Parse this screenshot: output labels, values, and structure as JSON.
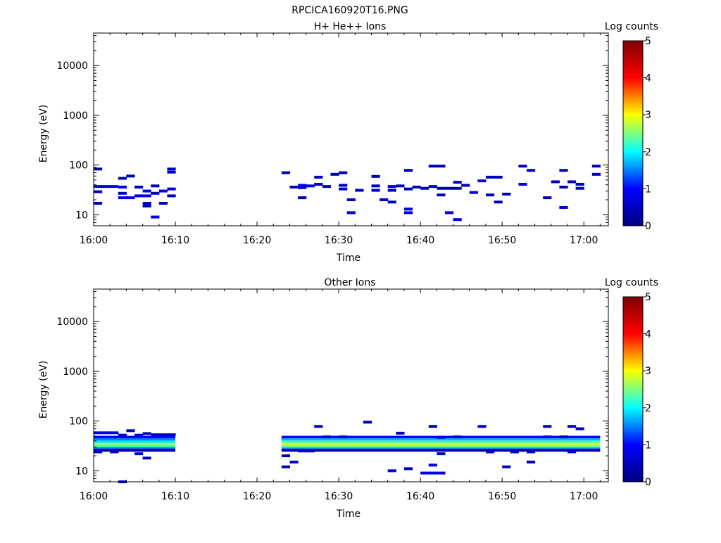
{
  "figure": {
    "title": "RPCICA160920T16.PNG"
  },
  "colorbar": {
    "stops": [
      "#00007f",
      "#0000ff",
      "#00ffff",
      "#ffff00",
      "#ff0000",
      "#7f0000"
    ]
  },
  "chart_data": [
    {
      "type": "heatmap",
      "title": "H+ He++ Ions",
      "xlabel": "Time",
      "ylabel": "Energy (eV)",
      "x_scale": "time",
      "y_scale": "log",
      "xlim": [
        "16:00",
        "17:03"
      ],
      "ylim": [
        6,
        45000
      ],
      "x_ticks": [
        "16:00",
        "16:10",
        "16:20",
        "16:30",
        "16:40",
        "16:50",
        "17:00"
      ],
      "y_ticks": [
        "10",
        "100",
        "1000",
        "10000"
      ],
      "colorbar": {
        "label": "Log counts",
        "range": [
          0,
          5
        ],
        "ticks": [
          "0",
          "1",
          "2",
          "3",
          "4",
          "5"
        ]
      },
      "cells": [
        {
          "t": "16:00",
          "e": 83,
          "c": 0.5
        },
        {
          "t": "16:00",
          "e": 37,
          "c": 0.8
        },
        {
          "t": "16:00",
          "e": 29,
          "c": 0.5
        },
        {
          "t": "16:00",
          "e": 17,
          "c": 0.5
        },
        {
          "t": "16:01",
          "e": 37,
          "c": 0.8
        },
        {
          "t": "16:02",
          "e": 37,
          "c": 0.8
        },
        {
          "t": "16:03",
          "e": 36,
          "c": 0.9
        },
        {
          "t": "16:03",
          "e": 54,
          "c": 0.5
        },
        {
          "t": "16:03",
          "e": 27,
          "c": 0.5
        },
        {
          "t": "16:03",
          "e": 22,
          "c": 0.9
        },
        {
          "t": "16:04",
          "e": 22,
          "c": 0.8
        },
        {
          "t": "16:04",
          "e": 60,
          "c": 0.5
        },
        {
          "t": "16:05",
          "e": 24,
          "c": 0.6
        },
        {
          "t": "16:05",
          "e": 36,
          "c": 0.5
        },
        {
          "t": "16:06",
          "e": 24,
          "c": 0.6
        },
        {
          "t": "16:06",
          "e": 30,
          "c": 0.8
        },
        {
          "t": "16:06",
          "e": 17,
          "c": 0.5
        },
        {
          "t": "16:06",
          "e": 15,
          "c": 0.5
        },
        {
          "t": "16:07",
          "e": 38,
          "c": 0.5
        },
        {
          "t": "16:07",
          "e": 27,
          "c": 0.5
        },
        {
          "t": "16:07",
          "e": 9,
          "c": 0.8
        },
        {
          "t": "16:08",
          "e": 30,
          "c": 0.8
        },
        {
          "t": "16:08",
          "e": 17,
          "c": 0.5
        },
        {
          "t": "16:09",
          "e": 83,
          "c": 0.6
        },
        {
          "t": "16:09",
          "e": 72,
          "c": 0.5
        },
        {
          "t": "16:09",
          "e": 33,
          "c": 0.8
        },
        {
          "t": "16:09",
          "e": 24,
          "c": 0.5
        },
        {
          "t": "16:23",
          "e": 70,
          "c": 0.5
        },
        {
          "t": "16:24",
          "e": 36,
          "c": 0.5
        },
        {
          "t": "16:25",
          "e": 39,
          "c": 0.9
        },
        {
          "t": "16:25",
          "e": 35,
          "c": 0.9
        },
        {
          "t": "16:25",
          "e": 22,
          "c": 0.5
        },
        {
          "t": "16:26",
          "e": 38,
          "c": 0.8
        },
        {
          "t": "16:27",
          "e": 57,
          "c": 0.5
        },
        {
          "t": "16:27",
          "e": 41,
          "c": 0.5
        },
        {
          "t": "16:28",
          "e": 37,
          "c": 0.5
        },
        {
          "t": "16:29",
          "e": 65,
          "c": 0.5
        },
        {
          "t": "16:30",
          "e": 70,
          "c": 0.5
        },
        {
          "t": "16:30",
          "e": 39,
          "c": 0.5
        },
        {
          "t": "16:30",
          "e": 33,
          "c": 0.5
        },
        {
          "t": "16:31",
          "e": 20,
          "c": 0.5
        },
        {
          "t": "16:31",
          "e": 11,
          "c": 0.8
        },
        {
          "t": "16:32",
          "e": 31,
          "c": 0.5
        },
        {
          "t": "16:34",
          "e": 59,
          "c": 0.5
        },
        {
          "t": "16:34",
          "e": 38,
          "c": 0.5
        },
        {
          "t": "16:34",
          "e": 31,
          "c": 0.5
        },
        {
          "t": "16:35",
          "e": 20,
          "c": 0.5
        },
        {
          "t": "16:36",
          "e": 37,
          "c": 0.5
        },
        {
          "t": "16:36",
          "e": 31,
          "c": 0.5
        },
        {
          "t": "16:36",
          "e": 18,
          "c": 0.5
        },
        {
          "t": "16:37",
          "e": 38,
          "c": 0.5
        },
        {
          "t": "16:38",
          "e": 78,
          "c": 0.5
        },
        {
          "t": "16:38",
          "e": 33,
          "c": 0.5
        },
        {
          "t": "16:38",
          "e": 13,
          "c": 0.8
        },
        {
          "t": "16:38",
          "e": 11,
          "c": 0.8
        },
        {
          "t": "16:39",
          "e": 36,
          "c": 0.5
        },
        {
          "t": "16:40",
          "e": 34,
          "c": 0.5
        },
        {
          "t": "16:41",
          "e": 95,
          "c": 0.5
        },
        {
          "t": "16:41",
          "e": 37,
          "c": 0.5
        },
        {
          "t": "16:42",
          "e": 95,
          "c": 0.5
        },
        {
          "t": "16:42",
          "e": 34,
          "c": 0.5
        },
        {
          "t": "16:42",
          "e": 25,
          "c": 0.5
        },
        {
          "t": "16:43",
          "e": 34,
          "c": 0.5
        },
        {
          "t": "16:43",
          "e": 11,
          "c": 0.8
        },
        {
          "t": "16:44",
          "e": 34,
          "c": 0.5
        },
        {
          "t": "16:44",
          "e": 45,
          "c": 0.5
        },
        {
          "t": "16:44",
          "e": 8,
          "c": 0.8
        },
        {
          "t": "16:45",
          "e": 39,
          "c": 0.5
        },
        {
          "t": "16:46",
          "e": 28,
          "c": 0.8
        },
        {
          "t": "16:47",
          "e": 48,
          "c": 0.9
        },
        {
          "t": "16:48",
          "e": 57,
          "c": 0.5
        },
        {
          "t": "16:48",
          "e": 25,
          "c": 0.5
        },
        {
          "t": "16:49",
          "e": 57,
          "c": 0.5
        },
        {
          "t": "16:49",
          "e": 18,
          "c": 0.5
        },
        {
          "t": "16:50",
          "e": 26,
          "c": 0.5
        },
        {
          "t": "16:52",
          "e": 95,
          "c": 0.5
        },
        {
          "t": "16:52",
          "e": 41,
          "c": 0.8
        },
        {
          "t": "16:53",
          "e": 78,
          "c": 0.5
        },
        {
          "t": "16:55",
          "e": 22,
          "c": 0.5
        },
        {
          "t": "16:56",
          "e": 46,
          "c": 0.5
        },
        {
          "t": "16:57",
          "e": 78,
          "c": 0.5
        },
        {
          "t": "16:57",
          "e": 36,
          "c": 0.5
        },
        {
          "t": "16:57",
          "e": 14,
          "c": 0.8
        },
        {
          "t": "16:58",
          "e": 46,
          "c": 0.5
        },
        {
          "t": "16:59",
          "e": 41,
          "c": 0.5
        },
        {
          "t": "16:59",
          "e": 34,
          "c": 1.0
        },
        {
          "t": "17:01",
          "e": 95,
          "c": 0.5
        },
        {
          "t": "17:01",
          "e": 65,
          "c": 0.5
        }
      ],
      "bands": []
    },
    {
      "type": "heatmap",
      "title": "Other Ions",
      "xlabel": "Time",
      "ylabel": "Energy (eV)",
      "x_scale": "time",
      "y_scale": "log",
      "xlim": [
        "16:00",
        "17:03"
      ],
      "ylim": [
        6,
        45000
      ],
      "x_ticks": [
        "16:00",
        "16:10",
        "16:20",
        "16:30",
        "16:40",
        "16:50",
        "17:00"
      ],
      "y_ticks": [
        "10",
        "100",
        "1000",
        "10000"
      ],
      "colorbar": {
        "label": "Log counts",
        "range": [
          0,
          5
        ],
        "ticks": [
          "0",
          "1",
          "2",
          "3",
          "4",
          "5"
        ]
      },
      "bands": [
        {
          "t0": "16:00",
          "t1": "16:10",
          "rows": [
            {
              "e": 47,
              "c": 1.0
            },
            {
              "e": 42,
              "c": 1.5
            },
            {
              "e": 38,
              "c": 1.9
            },
            {
              "e": 34,
              "c": 2.6
            },
            {
              "e": 31,
              "c": 2.3
            },
            {
              "e": 28,
              "c": 1.6
            },
            {
              "e": 26,
              "c": 0.4
            }
          ]
        },
        {
          "t0": "16:23",
          "t1": "17:02",
          "rows": [
            {
              "e": 47,
              "c": 1.0
            },
            {
              "e": 42,
              "c": 1.7
            },
            {
              "e": 38,
              "c": 2.2
            },
            {
              "e": 34,
              "c": 2.9
            },
            {
              "e": 31,
              "c": 2.5
            },
            {
              "e": 28,
              "c": 1.8
            },
            {
              "e": 26,
              "c": 0.4
            }
          ]
        }
      ],
      "cells": [
        {
          "t": "16:00",
          "e": 58,
          "c": 0.8
        },
        {
          "t": "16:01",
          "e": 58,
          "c": 0.8
        },
        {
          "t": "16:02",
          "e": 58,
          "c": 0.8
        },
        {
          "t": "16:03",
          "e": 52,
          "c": 0.8
        },
        {
          "t": "16:04",
          "e": 64,
          "c": 0.5
        },
        {
          "t": "16:05",
          "e": 52,
          "c": 0.8
        },
        {
          "t": "16:06",
          "e": 56,
          "c": 0.5
        },
        {
          "t": "16:07",
          "e": 53,
          "c": 0.5
        },
        {
          "t": "16:08",
          "e": 53,
          "c": 0.5
        },
        {
          "t": "16:09",
          "e": 53,
          "c": 0.5
        },
        {
          "t": "16:00",
          "e": 24,
          "c": 0.5
        },
        {
          "t": "16:02",
          "e": 24,
          "c": 0.5
        },
        {
          "t": "16:05",
          "e": 22,
          "c": 0.8
        },
        {
          "t": "16:06",
          "e": 18,
          "c": 0.5
        },
        {
          "t": "16:03",
          "e": 6,
          "c": 0.8
        },
        {
          "t": "16:23",
          "e": 20,
          "c": 0.5
        },
        {
          "t": "16:23",
          "e": 12,
          "c": 0.5
        },
        {
          "t": "16:24",
          "e": 15,
          "c": 0.5
        },
        {
          "t": "16:25",
          "e": 25,
          "c": 0.5
        },
        {
          "t": "16:26",
          "e": 25,
          "c": 0.5
        },
        {
          "t": "16:27",
          "e": 78,
          "c": 0.5
        },
        {
          "t": "16:28",
          "e": 48,
          "c": 0.5
        },
        {
          "t": "16:30",
          "e": 48,
          "c": 0.5
        },
        {
          "t": "16:33",
          "e": 95,
          "c": 0.5
        },
        {
          "t": "16:36",
          "e": 10,
          "c": 0.8
        },
        {
          "t": "16:37",
          "e": 57,
          "c": 0.5
        },
        {
          "t": "16:38",
          "e": 11,
          "c": 0.5
        },
        {
          "t": "16:40",
          "e": 9,
          "c": 0.8
        },
        {
          "t": "16:41",
          "e": 9,
          "c": 0.8
        },
        {
          "t": "16:41",
          "e": 13,
          "c": 0.8
        },
        {
          "t": "16:41",
          "e": 78,
          "c": 0.5
        },
        {
          "t": "16:42",
          "e": 9,
          "c": 0.8
        },
        {
          "t": "16:42",
          "e": 47,
          "c": 0.9
        },
        {
          "t": "16:42",
          "e": 22,
          "c": 0.5
        },
        {
          "t": "16:44",
          "e": 48,
          "c": 0.5
        },
        {
          "t": "16:47",
          "e": 78,
          "c": 0.5
        },
        {
          "t": "16:48",
          "e": 24,
          "c": 0.5
        },
        {
          "t": "16:50",
          "e": 12,
          "c": 0.5
        },
        {
          "t": "16:51",
          "e": 24,
          "c": 0.5
        },
        {
          "t": "16:53",
          "e": 24,
          "c": 0.5
        },
        {
          "t": "16:53",
          "e": 15,
          "c": 0.5
        },
        {
          "t": "16:55",
          "e": 78,
          "c": 0.5
        },
        {
          "t": "16:55",
          "e": 48,
          "c": 0.9
        },
        {
          "t": "16:57",
          "e": 48,
          "c": 0.5
        },
        {
          "t": "16:58",
          "e": 78,
          "c": 0.5
        },
        {
          "t": "16:58",
          "e": 24,
          "c": 0.8
        },
        {
          "t": "16:59",
          "e": 70,
          "c": 0.5
        }
      ]
    }
  ]
}
